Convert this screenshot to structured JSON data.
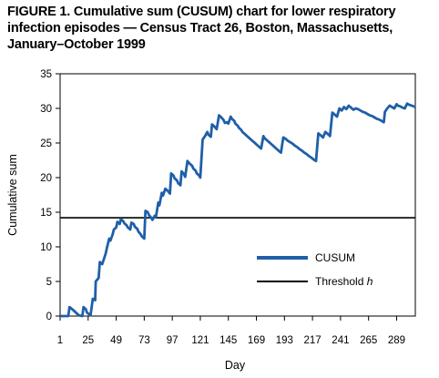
{
  "figure": {
    "title_line1": "FIGURE 1. Cumulative sum (CUSUM) chart for lower respiratory",
    "title_line2": "infection episodes — Census Tract 26, Boston, Massachusetts,",
    "title_line3": "January–October 1999"
  },
  "chart_data": {
    "type": "line",
    "xlabel": "Day",
    "ylabel": "Cumulative sum",
    "xlim": [
      1,
      305
    ],
    "ylim": [
      0,
      35
    ],
    "x_ticks": [
      1,
      25,
      49,
      73,
      97,
      121,
      145,
      169,
      193,
      217,
      241,
      265,
      289
    ],
    "y_ticks": [
      0,
      5,
      10,
      15,
      20,
      25,
      30,
      35
    ],
    "grid": false,
    "legend_position": "lower-right",
    "series_color": "#1f5fa8",
    "threshold_color": "#000000",
    "series": [
      {
        "name": "CUSUM",
        "x": [
          1,
          8,
          9,
          12,
          17,
          20,
          21,
          23,
          24,
          27,
          29,
          31,
          31.5,
          34,
          35,
          37,
          38,
          40,
          41,
          43,
          44,
          46,
          47,
          49,
          50,
          52,
          53,
          55,
          56,
          58,
          59,
          61,
          62,
          64,
          65,
          67,
          68,
          70,
          71,
          73,
          74,
          76,
          77,
          79,
          80,
          82,
          83,
          85,
          86,
          88,
          89,
          91,
          93,
          95,
          96,
          98,
          99,
          101,
          102,
          104,
          105,
          107,
          108,
          110,
          112,
          114,
          115,
          117,
          118,
          120,
          121,
          123,
          125,
          127,
          128,
          130,
          131,
          133,
          135,
          137,
          139,
          141,
          142,
          144,
          145,
          147,
          148,
          150,
          151,
          153,
          154,
          156,
          157,
          159,
          161,
          163,
          165,
          167,
          169,
          171,
          173,
          175,
          176,
          178,
          180,
          182,
          184,
          186,
          188,
          190,
          192,
          194,
          196,
          198,
          200,
          202,
          204,
          206,
          208,
          210,
          212,
          214,
          216,
          218,
          220,
          222,
          224,
          226,
          228,
          230,
          232,
          234,
          236,
          238,
          240,
          242,
          244,
          246,
          248,
          250,
          252,
          254,
          256,
          258,
          260,
          262,
          264,
          266,
          268,
          270,
          272,
          274,
          276,
          278,
          279,
          281,
          283,
          285,
          287,
          289,
          290,
          292,
          294,
          296,
          298,
          300,
          302,
          305
        ],
        "values": [
          0,
          0,
          1.3,
          0.9,
          0.1,
          0,
          1.3,
          1.0,
          0.5,
          0.1,
          2.5,
          2.3,
          5.0,
          5.5,
          7.8,
          7.5,
          8.0,
          9.0,
          9.8,
          11.2,
          10.9,
          11.8,
          12.5,
          12.8,
          13.6,
          13.3,
          14.0,
          13.7,
          13.4,
          13.1,
          12.8,
          12.5,
          13.5,
          13.3,
          12.9,
          12.6,
          12.2,
          11.8,
          11.5,
          11.2,
          15.2,
          15.0,
          14.6,
          14.2,
          13.9,
          14.5,
          14.3,
          16.4,
          16.0,
          17.8,
          17.4,
          18.4,
          18.1,
          17.7,
          20.6,
          20.3,
          19.9,
          19.6,
          19.2,
          18.9,
          20.9,
          20.5,
          20.1,
          22.4,
          22.0,
          21.7,
          21.3,
          21.0,
          20.6,
          20.3,
          20.0,
          25.5,
          26.0,
          26.6,
          26.2,
          25.9,
          27.7,
          27.4,
          27.0,
          29.0,
          28.7,
          28.3,
          27.9,
          28.0,
          27.8,
          28.8,
          28.5,
          28.2,
          27.8,
          27.5,
          27.2,
          26.9,
          26.6,
          26.3,
          26.0,
          25.7,
          25.4,
          25.1,
          24.8,
          24.5,
          24.2,
          26.0,
          25.7,
          25.4,
          25.1,
          24.8,
          24.5,
          24.2,
          23.9,
          23.6,
          25.8,
          25.6,
          25.3,
          25.1,
          24.9,
          24.6,
          24.4,
          24.1,
          23.9,
          23.6,
          23.4,
          23.1,
          22.9,
          22.6,
          22.4,
          26.4,
          26.1,
          25.8,
          26.6,
          26.3,
          26.0,
          29.4,
          29.1,
          28.8,
          30.0,
          29.7,
          30.2,
          29.9,
          30.4,
          30.1,
          29.8,
          30.0,
          29.9,
          29.7,
          29.5,
          29.4,
          29.2,
          29.0,
          28.9,
          28.7,
          28.5,
          28.4,
          28.2,
          28.0,
          29.5,
          30.0,
          30.4,
          30.2,
          30.0,
          30.6,
          30.4,
          30.3,
          30.1,
          30.0,
          30.7,
          30.5,
          30.4,
          30.2
        ]
      },
      {
        "name": "Threshold h",
        "x": [
          1,
          305
        ],
        "values": [
          14.2,
          14.2
        ]
      }
    ]
  },
  "legend": {
    "cusum_label": "CUSUM",
    "threshold_label_prefix": "Threshold ",
    "threshold_label_var": "h"
  }
}
